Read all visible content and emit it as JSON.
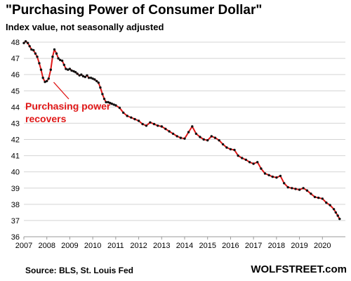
{
  "title": "\"Purchasing Power of Consumer Dollar\"",
  "subtitle": "Index value, not seasonally adjusted",
  "source": "Source: BLS, St. Louis Fed",
  "brand": "WOLFSTREET.com",
  "chart_data": {
    "type": "line",
    "ylim": [
      36,
      48
    ],
    "xlim": [
      2007,
      2021
    ],
    "yticks": [
      36,
      37,
      38,
      39,
      40,
      41,
      42,
      43,
      44,
      45,
      46,
      47,
      48
    ],
    "xticks": [
      "2007",
      "2008",
      "2009",
      "2010",
      "2011",
      "2012",
      "2013",
      "2014",
      "2015",
      "2016",
      "2017",
      "2018",
      "2019",
      "2020"
    ],
    "grid": "horizontal",
    "series": [
      {
        "line_color": "#e01818",
        "marker_color": "#111111",
        "x": [
          2007.0,
          2007.08,
          2007.17,
          2007.25,
          2007.33,
          2007.42,
          2007.5,
          2007.58,
          2007.67,
          2007.75,
          2007.83,
          2007.92,
          2008.0,
          2008.08,
          2008.17,
          2008.25,
          2008.33,
          2008.42,
          2008.5,
          2008.58,
          2008.67,
          2008.75,
          2008.83,
          2008.92,
          2009.0,
          2009.08,
          2009.17,
          2009.25,
          2009.33,
          2009.42,
          2009.5,
          2009.58,
          2009.67,
          2009.75,
          2009.83,
          2009.92,
          2010.0,
          2010.08,
          2010.17,
          2010.25,
          2010.33,
          2010.42,
          2010.5,
          2010.58,
          2010.67,
          2010.75,
          2010.83,
          2010.92,
          2011.0,
          2011.17,
          2011.33,
          2011.5,
          2011.67,
          2011.83,
          2012.0,
          2012.17,
          2012.33,
          2012.5,
          2012.67,
          2012.83,
          2013.0,
          2013.17,
          2013.33,
          2013.5,
          2013.67,
          2013.83,
          2014.0,
          2014.17,
          2014.33,
          2014.5,
          2014.67,
          2014.83,
          2015.0,
          2015.17,
          2015.33,
          2015.5,
          2015.67,
          2015.83,
          2016.0,
          2016.17,
          2016.33,
          2016.5,
          2016.67,
          2016.83,
          2017.0,
          2017.17,
          2017.33,
          2017.5,
          2017.67,
          2017.83,
          2018.0,
          2018.17,
          2018.33,
          2018.5,
          2018.67,
          2018.83,
          2019.0,
          2019.17,
          2019.33,
          2019.5,
          2019.67,
          2019.83,
          2020.0,
          2020.17,
          2020.33,
          2020.5,
          2020.58,
          2020.67,
          2020.75
        ],
        "y": [
          47.95,
          48.05,
          47.95,
          47.75,
          47.55,
          47.5,
          47.3,
          47.1,
          46.7,
          46.3,
          45.8,
          45.55,
          45.6,
          45.75,
          46.3,
          47.1,
          47.55,
          47.3,
          47.0,
          46.9,
          46.85,
          46.6,
          46.35,
          46.3,
          46.35,
          46.25,
          46.2,
          46.15,
          46.05,
          45.95,
          46.0,
          45.9,
          45.85,
          45.95,
          45.8,
          45.8,
          45.75,
          45.7,
          45.6,
          45.5,
          45.2,
          44.8,
          44.5,
          44.3,
          44.3,
          44.25,
          44.2,
          44.15,
          44.1,
          43.95,
          43.65,
          43.45,
          43.35,
          43.25,
          43.15,
          42.95,
          42.85,
          43.05,
          42.95,
          42.85,
          42.8,
          42.65,
          42.5,
          42.35,
          42.2,
          42.1,
          42.05,
          42.45,
          42.8,
          42.35,
          42.15,
          42.0,
          41.95,
          42.2,
          42.1,
          41.95,
          41.7,
          41.5,
          41.4,
          41.35,
          41.0,
          40.85,
          40.75,
          40.6,
          40.5,
          40.6,
          40.2,
          39.9,
          39.8,
          39.7,
          39.65,
          39.75,
          39.3,
          39.05,
          39.0,
          38.95,
          38.9,
          39.0,
          38.85,
          38.65,
          38.45,
          38.4,
          38.35,
          38.1,
          37.95,
          37.7,
          37.5,
          37.3,
          37.1
        ]
      }
    ],
    "annotation": {
      "lines": [
        "Purchasing power",
        "recovers"
      ],
      "color": "#e01818",
      "points_to": [
        2008.3,
        45.7
      ]
    }
  }
}
